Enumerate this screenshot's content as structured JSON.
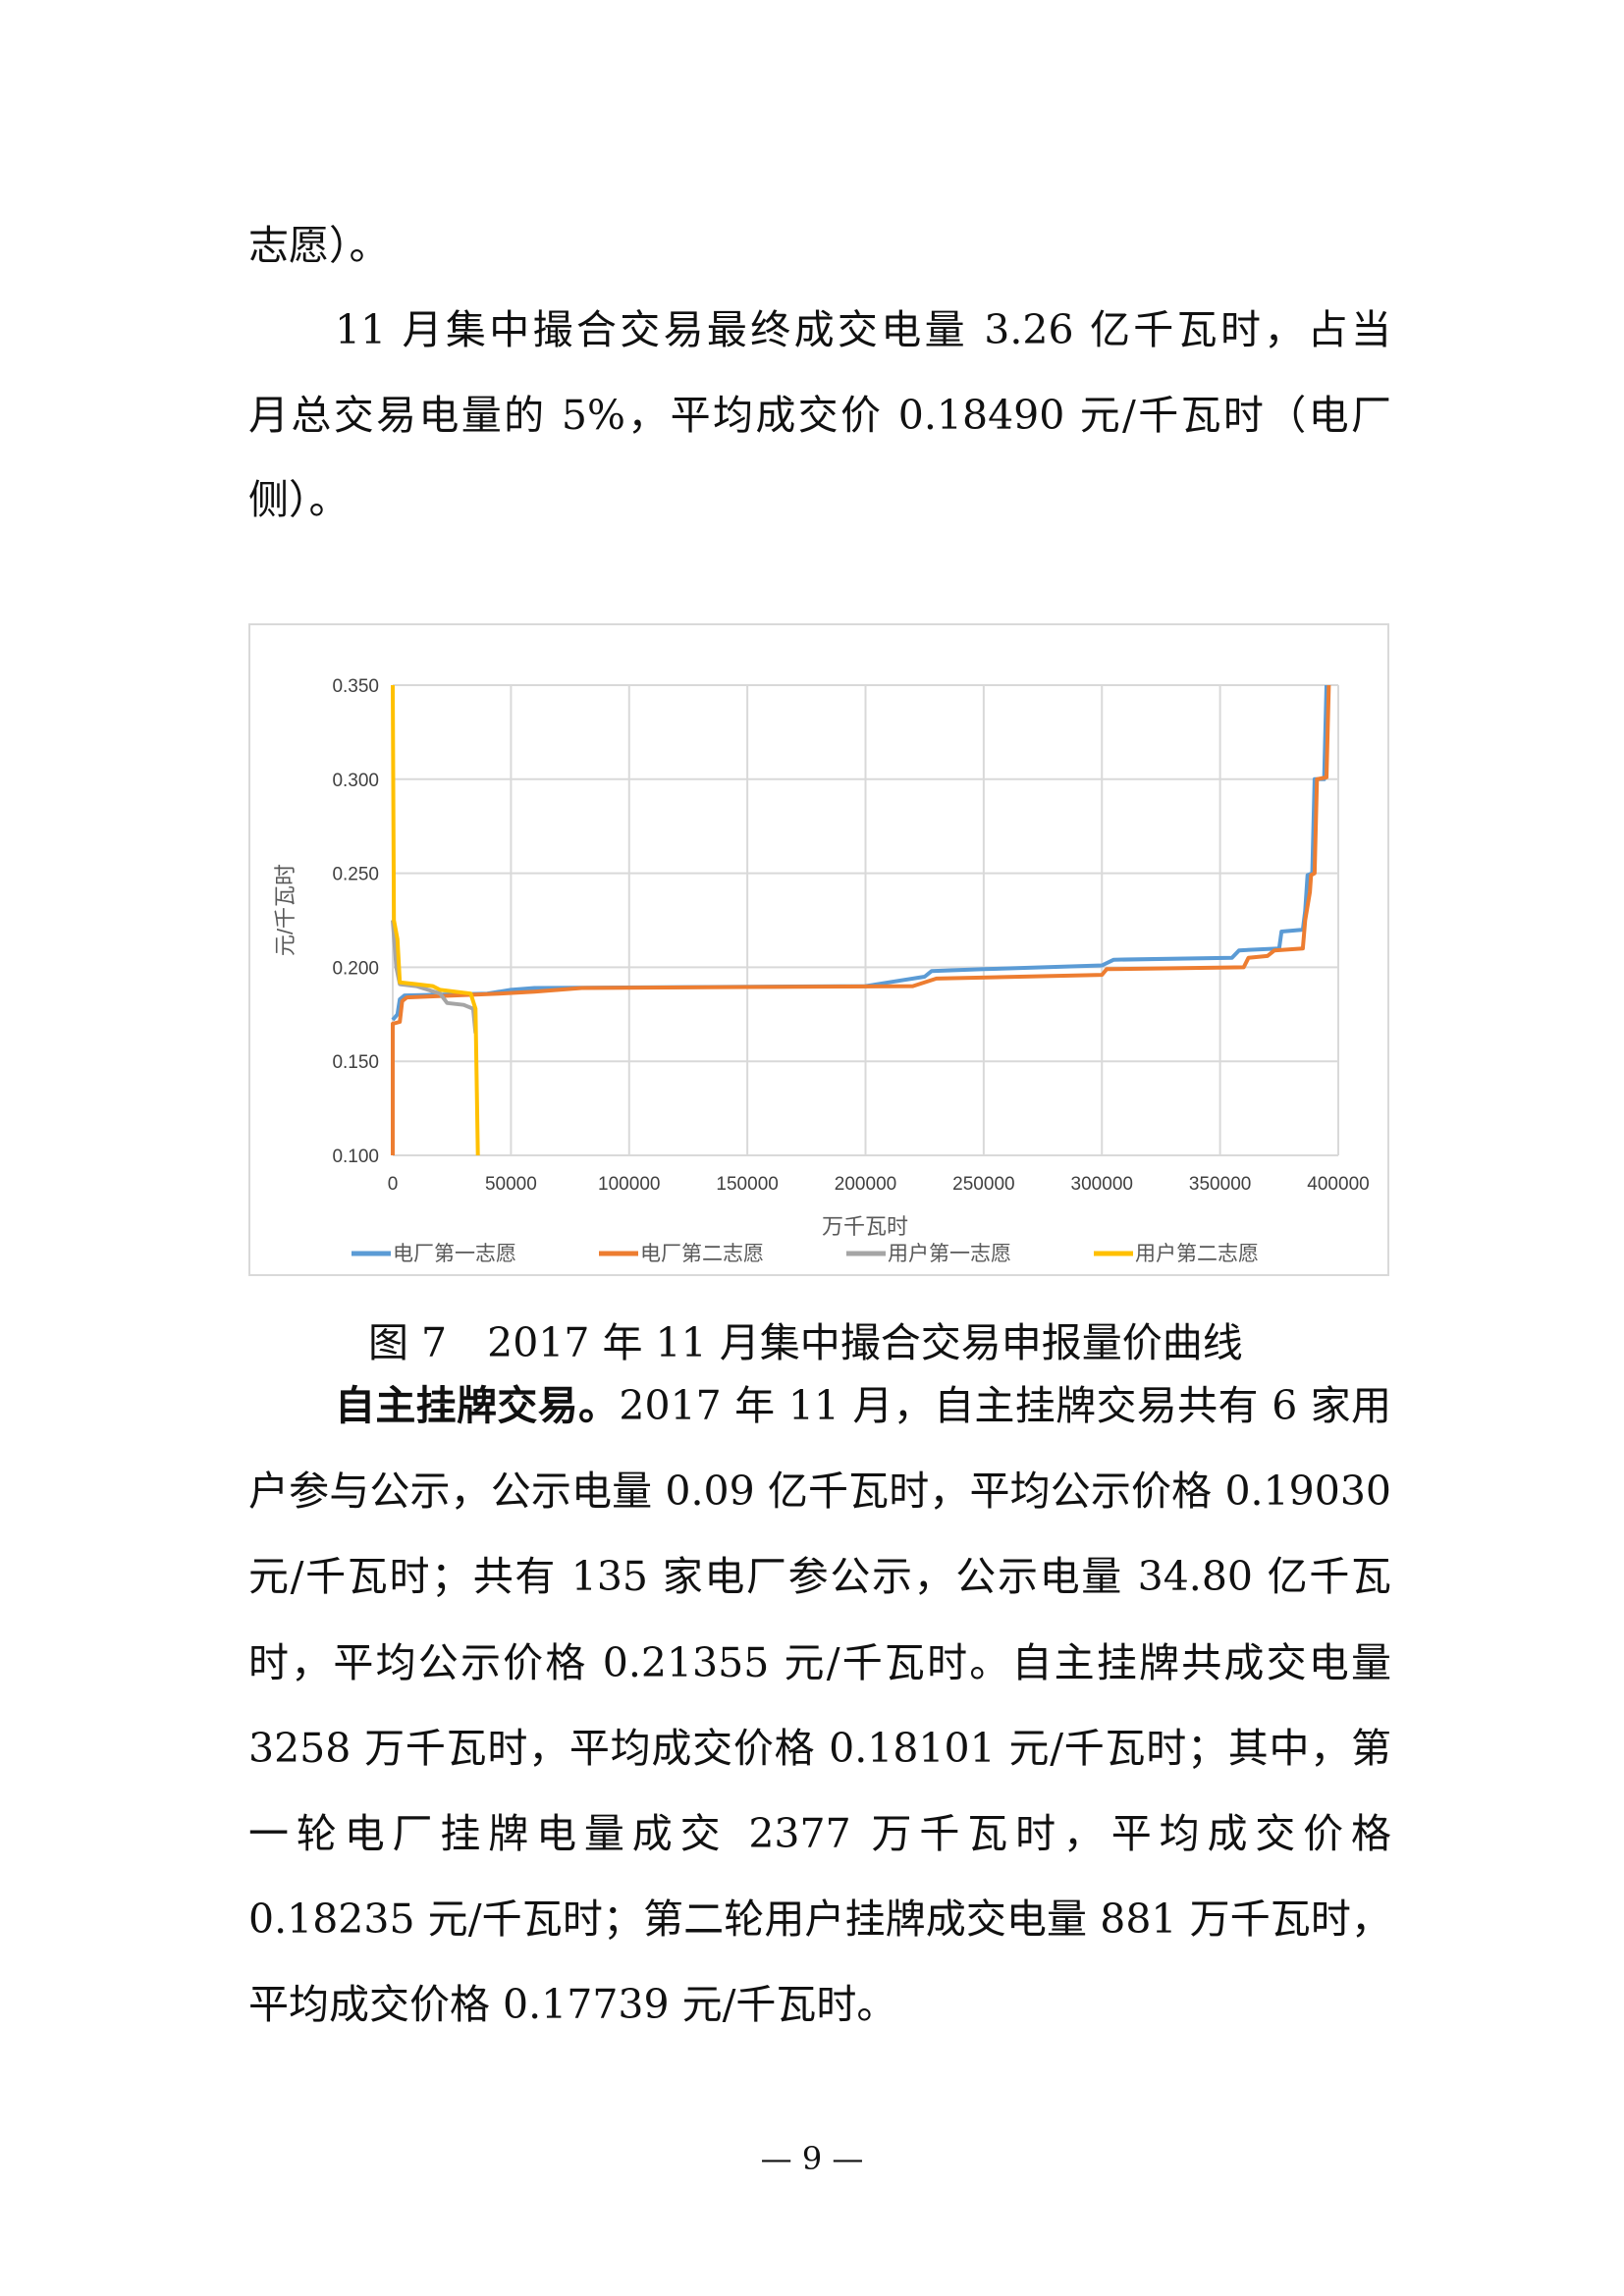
{
  "paragraphs_top": [
    "志愿）。",
    "11 月集中撮合交易最终成交电量 3.26 亿千瓦时，占当",
    "月总交易电量的 5%，平均成交价 0.18490 元/千瓦时（电厂",
    "侧）。"
  ],
  "caption": "图 7　2017 年 11 月集中撮合交易申报量价曲线",
  "paragraph2": {
    "bold_lead": "自主挂牌交易。",
    "lines": [
      "2017 年 11 月，自主挂牌交易共有 6 家用",
      "户参与公示，公示电量 0.09 亿千瓦时，平均公示价格 0.19030",
      "元/千瓦时；共有 135 家电厂参公示，公示电量 34.80 亿千瓦",
      "时，平均公示价格 0.21355 元/千瓦时。自主挂牌共成交电量",
      "3258 万千瓦时，平均成交价格 0.18101 元/千瓦时；其中，第",
      "一轮电厂挂牌电量成交 2377 万千瓦时，平均成交价格",
      "0.18235 元/千瓦时；第二轮用户挂牌成交电量 881 万千瓦时，",
      "平均成交价格 0.17739 元/千瓦时。"
    ]
  },
  "page_number": "— 9 —",
  "chart_data": {
    "type": "line",
    "title": "",
    "xlabel": "万千瓦时",
    "ylabel": "元/千瓦时",
    "xlim": [
      0,
      400000
    ],
    "ylim": [
      0.1,
      0.35
    ],
    "xticks": [
      "0",
      "50000",
      "100000",
      "150000",
      "200000",
      "250000",
      "300000",
      "350000",
      "400000"
    ],
    "yticks": [
      "0.100",
      "0.150",
      "0.200",
      "0.250",
      "0.300",
      "0.350"
    ],
    "grid": true,
    "legend": "bottom",
    "series": [
      {
        "name": "电厂第一志愿",
        "color": "#5b9bd5",
        "points": [
          [
            0,
            0.172
          ],
          [
            2000,
            0.175
          ],
          [
            3000,
            0.183
          ],
          [
            5000,
            0.185
          ],
          [
            40000,
            0.186
          ],
          [
            50000,
            0.188
          ],
          [
            60000,
            0.189
          ],
          [
            200000,
            0.19
          ],
          [
            210000,
            0.192
          ],
          [
            225000,
            0.195
          ],
          [
            228000,
            0.198
          ],
          [
            250000,
            0.199
          ],
          [
            300000,
            0.201
          ],
          [
            305000,
            0.204
          ],
          [
            355000,
            0.205
          ],
          [
            358000,
            0.209
          ],
          [
            375000,
            0.21
          ],
          [
            376000,
            0.219
          ],
          [
            385000,
            0.22
          ],
          [
            386000,
            0.23
          ],
          [
            387000,
            0.249
          ],
          [
            389000,
            0.25
          ],
          [
            390000,
            0.3
          ],
          [
            394000,
            0.3
          ],
          [
            395000,
            0.35
          ]
        ]
      },
      {
        "name": "电厂第二志愿",
        "color": "#ed7d31",
        "points": [
          [
            0,
            0.1
          ],
          [
            0,
            0.17
          ],
          [
            3000,
            0.171
          ],
          [
            4000,
            0.182
          ],
          [
            6000,
            0.184
          ],
          [
            45000,
            0.186
          ],
          [
            60000,
            0.187
          ],
          [
            80000,
            0.189
          ],
          [
            220000,
            0.19
          ],
          [
            230000,
            0.194
          ],
          [
            300000,
            0.196
          ],
          [
            302000,
            0.199
          ],
          [
            360000,
            0.2
          ],
          [
            362000,
            0.205
          ],
          [
            370000,
            0.206
          ],
          [
            373000,
            0.209
          ],
          [
            385000,
            0.21
          ],
          [
            386000,
            0.225
          ],
          [
            388000,
            0.24
          ],
          [
            388500,
            0.249
          ],
          [
            390000,
            0.25
          ],
          [
            391000,
            0.3
          ],
          [
            395000,
            0.301
          ],
          [
            396000,
            0.35
          ]
        ]
      },
      {
        "name": "用户第一志愿",
        "color": "#a5a5a5",
        "points": [
          [
            0,
            0.225
          ],
          [
            1500,
            0.2
          ],
          [
            3000,
            0.191
          ],
          [
            10000,
            0.19
          ],
          [
            15000,
            0.188
          ],
          [
            20000,
            0.186
          ],
          [
            23000,
            0.181
          ],
          [
            30000,
            0.18
          ],
          [
            34000,
            0.178
          ],
          [
            35000,
            0.165
          ]
        ]
      },
      {
        "name": "用户第二志愿",
        "color": "#ffc000",
        "points": [
          [
            0,
            0.35
          ],
          [
            500,
            0.225
          ],
          [
            2000,
            0.215
          ],
          [
            3000,
            0.192
          ],
          [
            10000,
            0.191
          ],
          [
            17000,
            0.19
          ],
          [
            20000,
            0.188
          ],
          [
            33000,
            0.186
          ],
          [
            35000,
            0.178
          ],
          [
            36000,
            0.1
          ]
        ]
      }
    ]
  }
}
